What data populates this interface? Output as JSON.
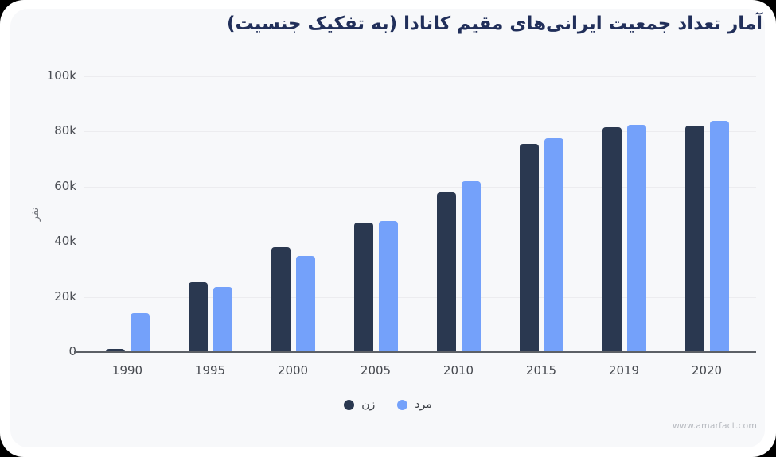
{
  "frame": {
    "watermark": "www.amarfact.com"
  },
  "chart_data": {
    "type": "bar",
    "title": "آمار تعداد جمعیت ایرانی‌های مقیم کانادا (به تفکیک جنسیت)",
    "ylabel": "نفر",
    "xlabel": "",
    "categories": [
      "1990",
      "1995",
      "2000",
      "2005",
      "2010",
      "2015",
      "2019",
      "2020"
    ],
    "series": [
      {
        "name": "زن",
        "color": "#2a3850",
        "values": [
          1200,
          25500,
          38000,
          47000,
          58000,
          75500,
          81500,
          82000
        ]
      },
      {
        "name": "مرد",
        "color": "#74a1fa",
        "values": [
          14000,
          23500,
          35000,
          47500,
          62000,
          77500,
          82500,
          84000
        ]
      }
    ],
    "ylim": [
      0,
      100000
    ],
    "yticks": [
      {
        "value": 0,
        "label": "0"
      },
      {
        "value": 20000,
        "label": "20k"
      },
      {
        "value": 40000,
        "label": "40k"
      },
      {
        "value": 60000,
        "label": "60k"
      },
      {
        "value": 80000,
        "label": "80k"
      },
      {
        "value": 100000,
        "label": "100k"
      }
    ],
    "grid": true,
    "legend_position": "bottom"
  },
  "colors": {
    "title": "#212f5a",
    "card_bg": "#f7f8fa",
    "axis_text": "#4b4e54",
    "gridline": "#ececef",
    "baseline": "#5c6066",
    "watermark": "#b8bbc1",
    "series_dark": "#2a3850",
    "series_blue": "#74a1fa"
  }
}
